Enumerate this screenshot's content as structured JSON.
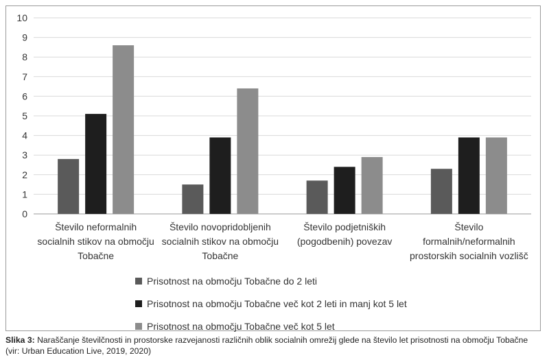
{
  "chart_data": {
    "type": "bar",
    "categories": [
      [
        "Število neformalnih",
        "socialnih stikov na območju",
        "Tobačne"
      ],
      [
        "Število novopridobljenih",
        "socialnih stikov na območju",
        "Tobačne"
      ],
      [
        "Število podjetniških",
        "(pogodbenih) povezav"
      ],
      [
        "Število",
        "formalnih/neformalnih",
        "prostorskih socialnih vozlišč"
      ]
    ],
    "series": [
      {
        "name": "Prisotnost na območju Tobačne do 2 leti",
        "color": "#5a5a5a",
        "values": [
          2.8,
          1.5,
          1.7,
          2.3
        ]
      },
      {
        "name": "Prisotnost na območju Tobačne več kot 2 leti in manj kot 5 let",
        "color": "#1e1e1e",
        "values": [
          5.1,
          3.9,
          2.4,
          3.9
        ]
      },
      {
        "name": "Prisotnost na območju Tobačne več kot 5 let",
        "color": "#8c8c8c",
        "values": [
          8.6,
          6.4,
          2.9,
          3.9
        ]
      }
    ],
    "ylim": [
      0,
      10
    ],
    "yticks": [
      0,
      1,
      2,
      3,
      4,
      5,
      6,
      7,
      8,
      9,
      10
    ],
    "grid": true,
    "legend": "bottom"
  },
  "caption": {
    "lead": "Slika 3:",
    "text": " Naraščanje številčnosti in prostorske razvejanosti različnih oblik socialnih omrežij glede na število let prisotnosti na območju Tobačne (vir: Urban Education Live, 2019, 2020)"
  }
}
